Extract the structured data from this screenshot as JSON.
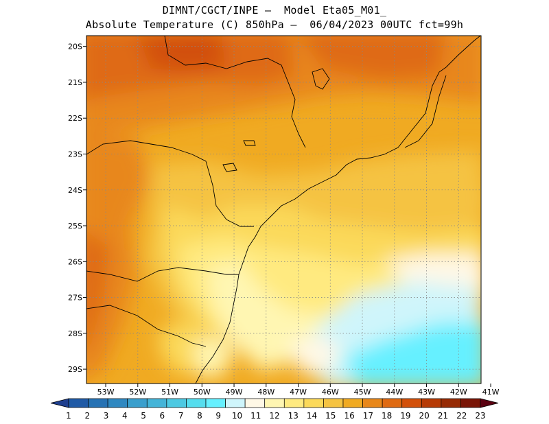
{
  "title": {
    "line1": "DIMNT/CGCT/INPE —  Model Eta05_M01_",
    "line2": "Absolute Temperature (C) 850hPa —  06/04/2023 00UTC fct=99h"
  },
  "map": {
    "lat_labels": [
      "20S",
      "21S",
      "22S",
      "23S",
      "24S",
      "25S",
      "26S",
      "27S",
      "28S",
      "29S"
    ],
    "lon_labels": [
      "53W",
      "52W",
      "51W",
      "50W",
      "49W",
      "48W",
      "47W",
      "46W",
      "45W",
      "44W",
      "43W",
      "42W",
      "41W"
    ],
    "lat_range": [
      -29.4,
      -19.7
    ],
    "lon_range": [
      -53.6,
      -41.3
    ],
    "grid": true
  },
  "colorbar": {
    "labels": [
      "1",
      "2",
      "3",
      "4",
      "5",
      "6",
      "7",
      "8",
      "9",
      "10",
      "11",
      "12",
      "13",
      "14",
      "15",
      "16",
      "17",
      "18",
      "19",
      "20",
      "21",
      "22",
      "23"
    ],
    "colors": [
      "#1f3f8f",
      "#1f5aa6",
      "#2672b4",
      "#2f88c1",
      "#3a9fcd",
      "#44b4d8",
      "#4dc9e2",
      "#55ddee",
      "#66f0ff",
      "#cff5fb",
      "#fff8e6",
      "#fff6b2",
      "#ffea80",
      "#fbd95a",
      "#f5c342",
      "#f0aa22",
      "#e8871a",
      "#df6a12",
      "#d2500a",
      "#b63a05",
      "#962a04",
      "#7a1506",
      "#5a0010"
    ]
  }
}
